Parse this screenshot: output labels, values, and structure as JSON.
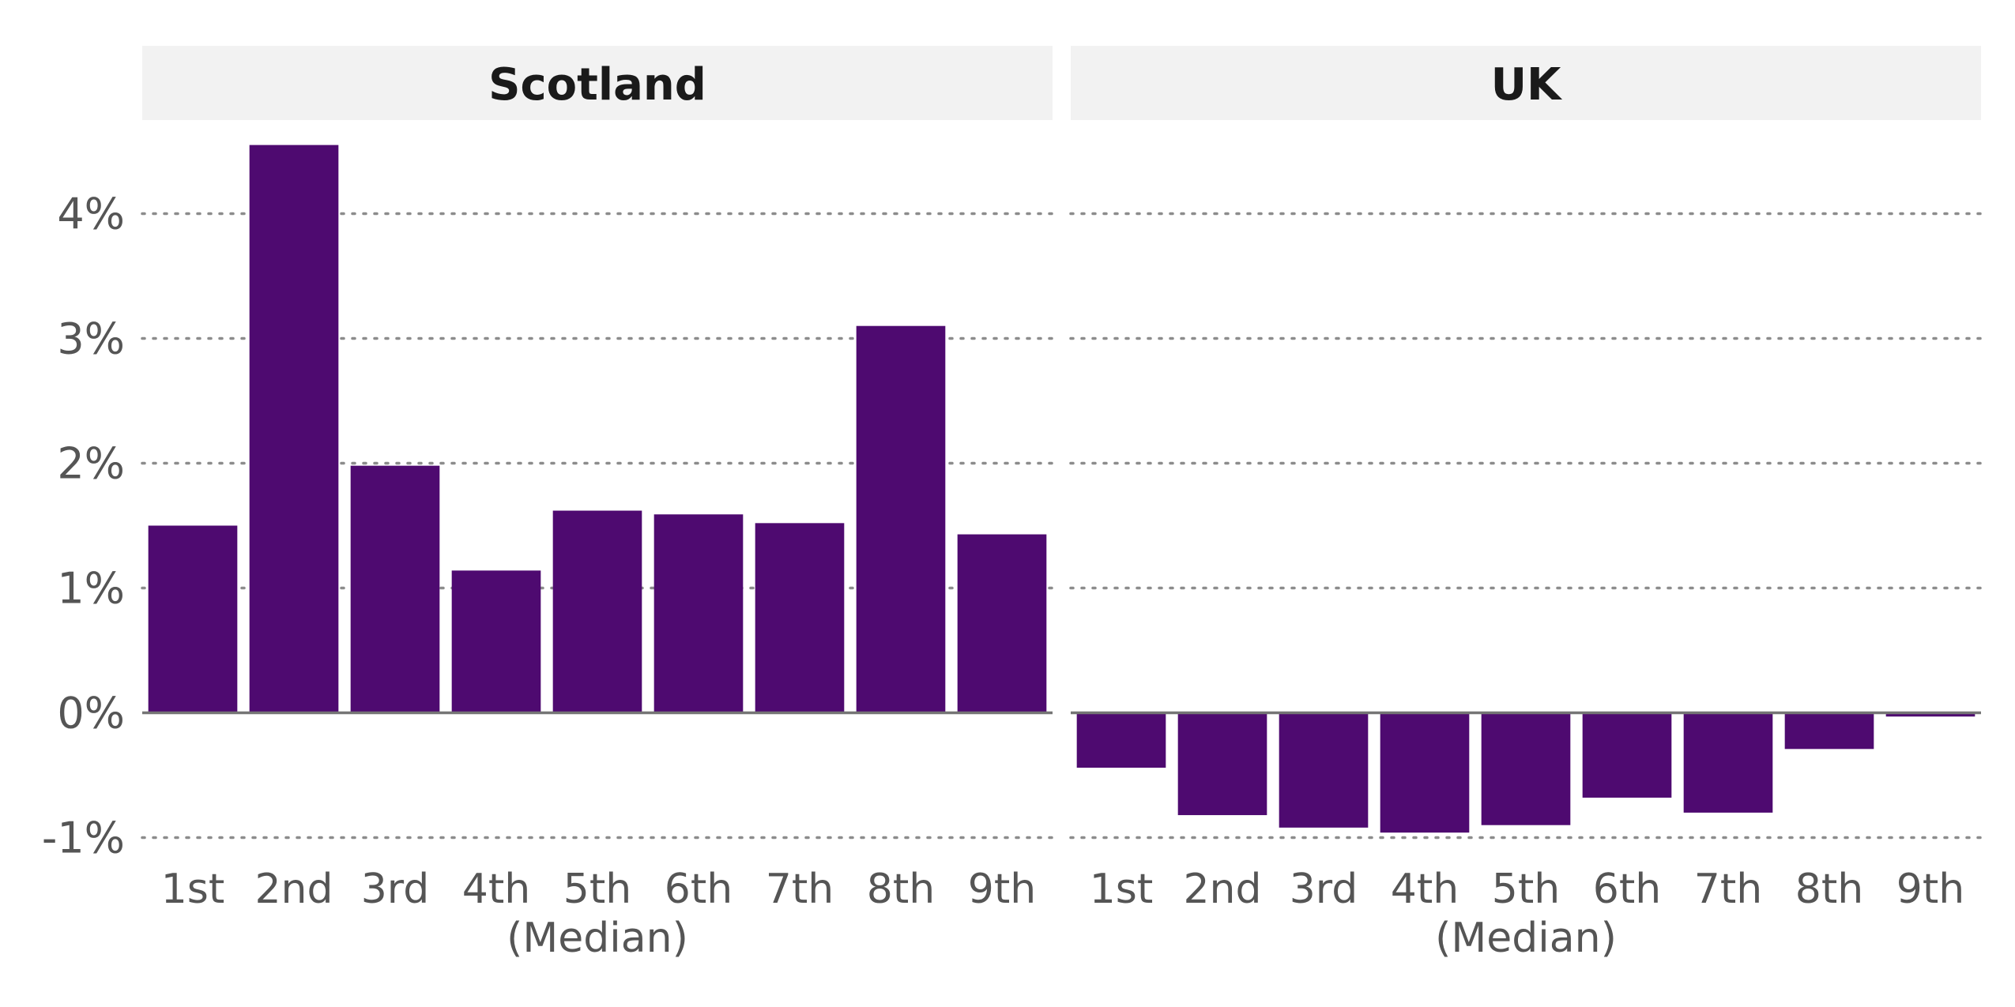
{
  "chart_data": {
    "type": "bar",
    "categories": [
      "1st",
      "2nd",
      "3rd",
      "4th",
      "5th",
      "6th",
      "7th",
      "8th",
      "9th"
    ],
    "category_sublabels": [
      "",
      "",
      "",
      "",
      "(Median)",
      "",
      "",
      "",
      ""
    ],
    "y_ticks": [
      -1,
      0,
      1,
      2,
      3,
      4
    ],
    "y_tick_labels": [
      "-1%",
      "0%",
      "1%",
      "2%",
      "3%",
      "4%"
    ],
    "ylim": [
      -1.25,
      4.75
    ],
    "grid": true,
    "panels": [
      {
        "title": "Scotland",
        "values": [
          1.5,
          4.55,
          1.98,
          1.14,
          1.62,
          1.59,
          1.52,
          3.1,
          1.43
        ]
      },
      {
        "title": "UK",
        "values": [
          -0.44,
          -0.82,
          -0.92,
          -0.96,
          -0.9,
          -0.68,
          -0.8,
          -0.29,
          -0.03
        ]
      }
    ],
    "bar_color": "#4e0a70"
  }
}
